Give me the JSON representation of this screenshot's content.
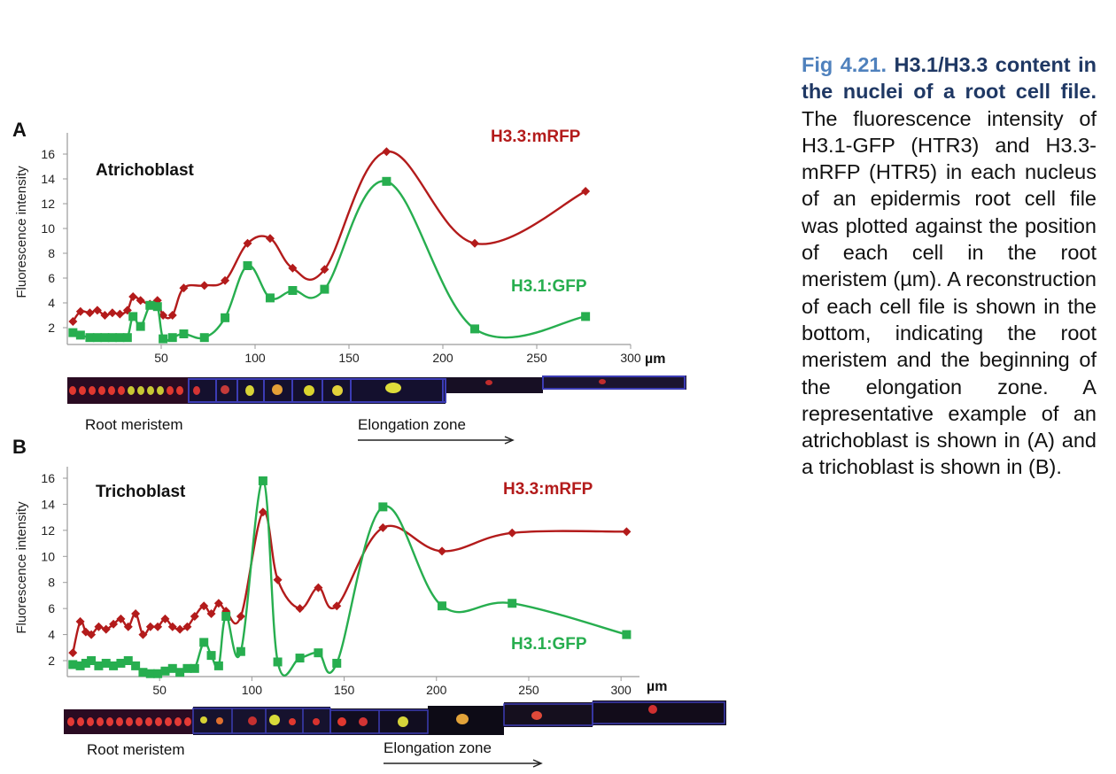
{
  "caption": {
    "fig_label": "Fig 4.21.",
    "title": "H3.1/H3.3 content in the nuclei of a root cell file.",
    "body": "The fluorescence intensity of H3.1-GFP (HTR3) and H3.3-mRFP (HTR5) in each nucleus of an epidermis root cell file was plotted against the position of each cell in the root meristem (µm). A reconstruction of each cell file is shown in the bottom, indicating the root meristem and the beginning of the elongation zone. A representative example of an atrichoblast is shown in (A) and a trichoblast is shown in (B)."
  },
  "colors": {
    "h33": "#b31b1b",
    "h31": "#27ae4f",
    "axis": "#9a9a9a",
    "text": "#111111"
  },
  "strips": {
    "a": {
      "meristem_label": "Root meristem",
      "elongation_label": "Elongation zone"
    },
    "b": {
      "meristem_label": "Root meristem",
      "elongation_label": "Elongation zone"
    }
  },
  "chart_data": [
    {
      "panel": "A",
      "type": "line",
      "inset_label": "Atrichoblast",
      "ylabel": "Fluorescence intensity",
      "xunit": "µm",
      "xlim": [
        0,
        300
      ],
      "ylim": [
        1,
        17
      ],
      "xticks": [
        50,
        100,
        150,
        200,
        250,
        300
      ],
      "yticks": [
        2,
        4,
        6,
        8,
        10,
        12,
        14,
        16
      ],
      "series": [
        {
          "name": "H3.3:mRFP",
          "x": [
            3,
            7,
            12,
            16,
            20,
            24,
            28,
            32,
            35,
            39,
            44,
            48,
            51,
            56,
            62,
            73,
            84,
            96,
            108,
            120,
            137,
            170,
            217,
            276
          ],
          "y": [
            2.5,
            3.3,
            3.2,
            3.4,
            3.0,
            3.2,
            3.1,
            3.4,
            4.5,
            4.2,
            3.9,
            4.2,
            3.0,
            3.0,
            5.2,
            5.4,
            5.8,
            8.8,
            9.2,
            6.8,
            6.7,
            16.2,
            8.8,
            13.0
          ]
        },
        {
          "name": "H3.1:GFP",
          "x": [
            3,
            7,
            12,
            16,
            20,
            24,
            28,
            32,
            35,
            39,
            44,
            48,
            51,
            56,
            62,
            73,
            84,
            96,
            108,
            120,
            137,
            170,
            217,
            276
          ],
          "y": [
            1.6,
            1.4,
            1.2,
            1.2,
            1.2,
            1.2,
            1.2,
            1.2,
            2.9,
            2.1,
            3.8,
            3.7,
            1.1,
            1.2,
            1.5,
            1.2,
            2.8,
            7.0,
            4.4,
            5.0,
            5.1,
            13.8,
            1.9,
            2.9
          ]
        }
      ]
    },
    {
      "panel": "B",
      "type": "line",
      "inset_label": "Trichoblast",
      "ylabel": "Fluorescence intensity",
      "xunit": "µm",
      "xlim": [
        0,
        310
      ],
      "ylim": [
        0,
        17
      ],
      "xticks": [
        50,
        100,
        150,
        200,
        250,
        300
      ],
      "yticks": [
        2,
        4,
        6,
        8,
        10,
        12,
        14,
        16
      ],
      "series": [
        {
          "name": "H3.3:mRFP",
          "x": [
            3,
            7,
            10,
            13,
            17,
            21,
            25,
            29,
            33,
            37,
            41,
            45,
            49,
            53,
            57,
            61,
            65,
            69,
            74,
            78,
            82,
            86,
            94,
            106,
            114,
            126,
            136,
            146,
            171,
            203,
            241,
            303
          ],
          "y": [
            2.6,
            5.0,
            4.2,
            4.0,
            4.6,
            4.4,
            4.8,
            5.2,
            4.6,
            5.6,
            4.0,
            4.6,
            4.6,
            5.2,
            4.6,
            4.4,
            4.6,
            5.4,
            6.2,
            5.6,
            6.4,
            5.8,
            5.4,
            13.4,
            8.2,
            6.0,
            7.6,
            6.2,
            12.2,
            10.4,
            11.8,
            11.9
          ]
        },
        {
          "name": "H3.1:GFP",
          "x": [
            3,
            7,
            10,
            13,
            17,
            21,
            25,
            29,
            33,
            37,
            41,
            45,
            49,
            53,
            57,
            61,
            65,
            69,
            74,
            78,
            82,
            86,
            94,
            106,
            114,
            126,
            136,
            146,
            171,
            203,
            241,
            303
          ],
          "y": [
            1.7,
            1.6,
            1.8,
            2.0,
            1.6,
            1.8,
            1.6,
            1.8,
            2.0,
            1.6,
            1.1,
            1.0,
            1.0,
            1.2,
            1.4,
            1.1,
            1.4,
            1.4,
            3.4,
            2.4,
            1.6,
            5.4,
            2.7,
            15.8,
            1.9,
            2.2,
            2.6,
            1.8,
            13.8,
            6.2,
            6.4,
            4.0
          ]
        }
      ]
    }
  ]
}
